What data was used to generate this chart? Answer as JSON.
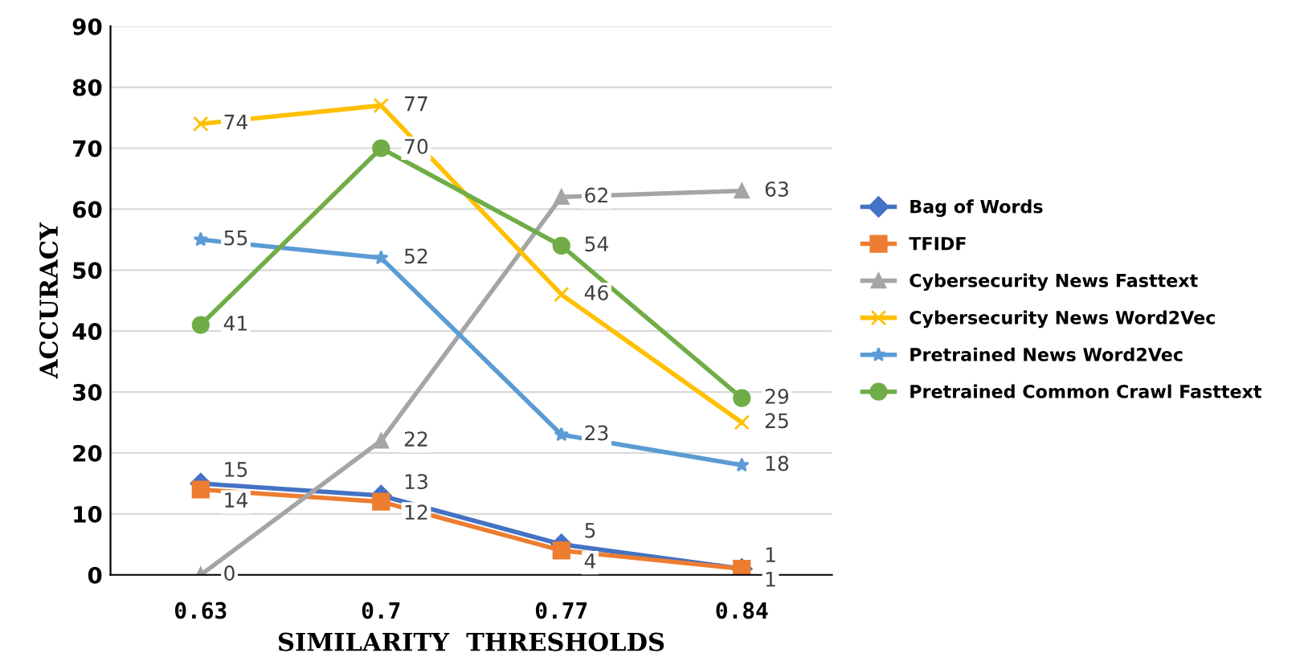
{
  "chart_data": {
    "type": "line",
    "xlabel": "SIMILARITY  THRESHOLDS",
    "ylabel": "ACCURACY",
    "categories": [
      "0.63",
      "0.7",
      "0.77",
      "0.84"
    ],
    "ylim": [
      0,
      90
    ],
    "yticks": [
      0,
      10,
      20,
      30,
      40,
      50,
      60,
      70,
      80,
      90
    ],
    "grid": "y",
    "legend": "right",
    "data_labels": true,
    "series": [
      {
        "name": "Bag of Words",
        "color": "#4472c4",
        "marker": "diamond",
        "values": [
          15,
          13,
          5,
          1
        ]
      },
      {
        "name": "TFIDF",
        "color": "#ed7d31",
        "marker": "square",
        "values": [
          14,
          12,
          4,
          1
        ]
      },
      {
        "name": "Cybersecurity News Fasttext",
        "color": "#a5a5a5",
        "marker": "triangle",
        "values": [
          0,
          22,
          62,
          63
        ]
      },
      {
        "name": "Cybersecurity News Word2Vec",
        "color": "#ffc000",
        "marker": "cross",
        "values": [
          74,
          77,
          46,
          25
        ]
      },
      {
        "name": "Pretrained News Word2Vec",
        "color": "#5b9bd5",
        "marker": "star",
        "values": [
          55,
          52,
          23,
          18
        ]
      },
      {
        "name": "Pretrained Common Crawl Fasttext",
        "color": "#70ad47",
        "marker": "circle",
        "values": [
          41,
          70,
          54,
          29
        ]
      }
    ]
  }
}
